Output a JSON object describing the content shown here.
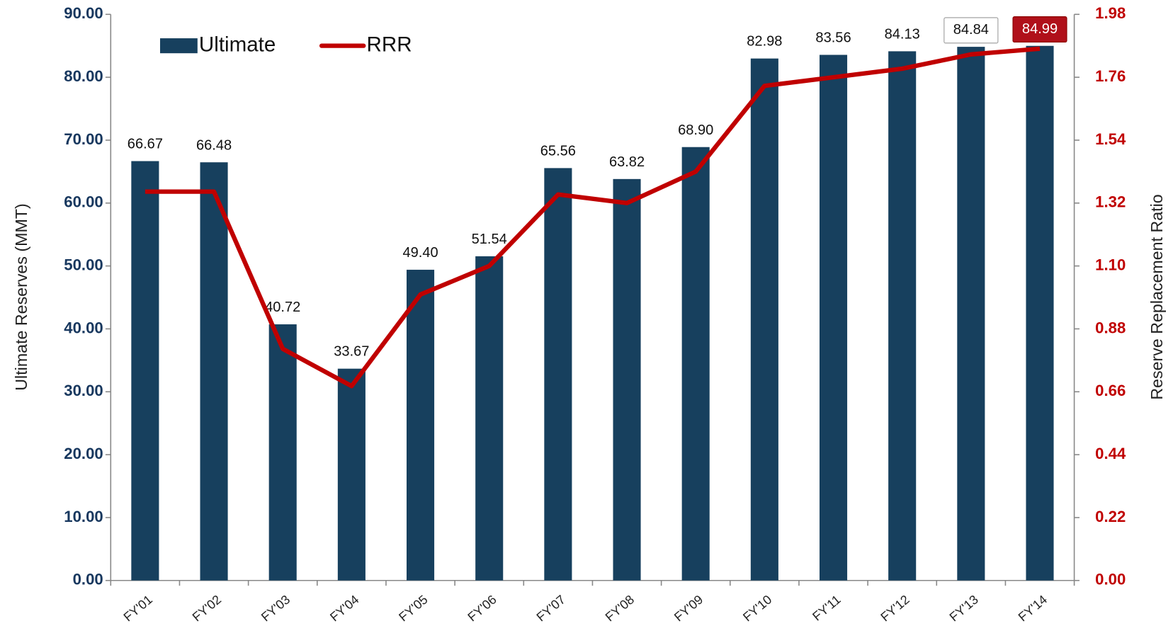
{
  "chart_data": {
    "type": "bar_line",
    "categories": [
      "FY'01",
      "FY'02",
      "FY'03",
      "FY'04",
      "FY'05",
      "FY'06",
      "FY'07",
      "FY'08",
      "FY'09",
      "FY'10",
      "FY'11",
      "FY'12",
      "FY'13",
      "FY'14"
    ],
    "series": [
      {
        "name": "Ultimate",
        "color": "#17405e",
        "type": "bar",
        "values": [
          66.67,
          66.48,
          40.72,
          33.67,
          49.4,
          51.54,
          65.56,
          63.82,
          68.9,
          82.98,
          83.56,
          84.13,
          84.84,
          84.99
        ],
        "value_labels": [
          "66.67",
          "66.48",
          "40.72",
          "33.67",
          "49.40",
          "51.54",
          "65.56",
          "63.82",
          "68.90",
          "82.98",
          "83.56",
          "84.13",
          "84.84",
          "84.99"
        ]
      },
      {
        "name": "RRR",
        "color": "#c00000",
        "type": "line",
        "axis": "y2",
        "values": [
          1.36,
          1.36,
          0.81,
          0.68,
          1.0,
          1.1,
          1.35,
          1.32,
          1.43,
          1.73,
          1.76,
          1.79,
          1.84,
          1.86
        ]
      }
    ],
    "ylabel": "Ultimate Reserves (MMT)",
    "y2label": "Reserve Replacement Ratio",
    "ylim": [
      0,
      90
    ],
    "yticks": [
      {
        "value": 0,
        "label": "0.00"
      },
      {
        "value": 10,
        "label": "10.00"
      },
      {
        "value": 20,
        "label": "20.00"
      },
      {
        "value": 30,
        "label": "30.00"
      },
      {
        "value": 40,
        "label": "40.00"
      },
      {
        "value": 50,
        "label": "50.00"
      },
      {
        "value": 60,
        "label": "60.00"
      },
      {
        "value": 70,
        "label": "70.00"
      },
      {
        "value": 80,
        "label": "80.00"
      },
      {
        "value": 90,
        "label": "90.00"
      }
    ],
    "y2lim": [
      0,
      1.98
    ],
    "y2ticks": [
      {
        "value": 0,
        "label": "0.00"
      },
      {
        "value": 0.22,
        "label": "0.22"
      },
      {
        "value": 0.44,
        "label": "0.44"
      },
      {
        "value": 0.66,
        "label": "0.66"
      },
      {
        "value": 0.88,
        "label": "0.88"
      },
      {
        "value": 1.1,
        "label": "1.10"
      },
      {
        "value": 1.32,
        "label": "1.32"
      },
      {
        "value": 1.54,
        "label": "1.54"
      },
      {
        "value": 1.76,
        "label": "1.76"
      },
      {
        "value": 1.98,
        "label": "1.98"
      }
    ],
    "legend": "upper left"
  }
}
